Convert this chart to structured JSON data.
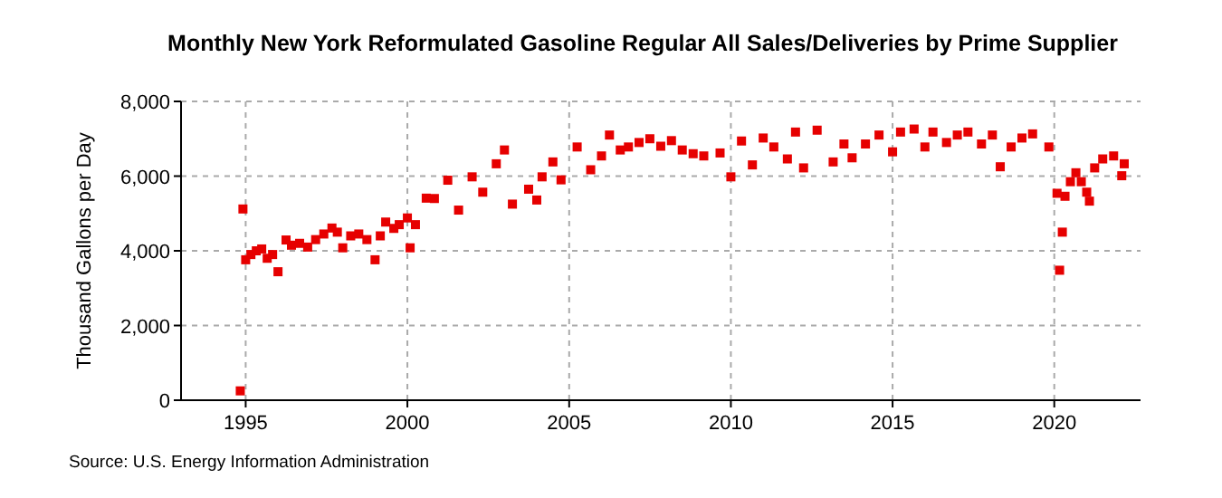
{
  "chart_data": {
    "type": "scatter",
    "title": "Monthly New York Reformulated Gasoline Regular All Sales/Deliveries by Prime Supplier",
    "ylabel": "Thousand Gallons per Day",
    "annotations": [
      "Source: U.S. Energy Information Administration"
    ],
    "x": [
      "1994-11",
      "1994-12",
      "1995-01",
      "1995-03",
      "1995-05",
      "1995-07",
      "1995-09",
      "1995-11",
      "1996-01",
      "1996-04",
      "1996-06",
      "1996-09",
      "1996-12",
      "1997-03",
      "1997-06",
      "1997-09",
      "1997-11",
      "1998-01",
      "1998-04",
      "1998-07",
      "1998-10",
      "1999-01",
      "1999-03",
      "1999-05",
      "1999-08",
      "1999-10",
      "2000-01",
      "2000-02",
      "2000-04",
      "2000-08",
      "2000-11",
      "2001-04",
      "2001-08",
      "2002-01",
      "2002-05",
      "2002-10",
      "2003-01",
      "2003-04",
      "2003-10",
      "2004-01",
      "2004-03",
      "2004-07",
      "2004-10",
      "2005-04",
      "2005-09",
      "2006-01",
      "2006-04",
      "2006-08",
      "2006-11",
      "2007-03",
      "2007-07",
      "2007-11",
      "2008-03",
      "2008-07",
      "2008-11",
      "2009-03",
      "2009-09",
      "2010-01",
      "2010-05",
      "2010-09",
      "2011-01",
      "2011-05",
      "2011-10",
      "2012-01",
      "2012-04",
      "2012-09",
      "2013-03",
      "2013-07",
      "2013-10",
      "2014-03",
      "2014-08",
      "2015-01",
      "2015-04",
      "2015-09",
      "2016-01",
      "2016-04",
      "2016-09",
      "2017-01",
      "2017-05",
      "2017-10",
      "2018-02",
      "2018-05",
      "2018-09",
      "2019-01",
      "2019-05",
      "2019-11",
      "2020-02",
      "2020-03",
      "2020-04",
      "2020-05",
      "2020-07",
      "2020-09",
      "2020-11",
      "2021-01",
      "2021-02",
      "2021-04",
      "2021-07",
      "2021-11",
      "2022-02",
      "2022-03"
    ],
    "values": [
      250,
      5120,
      3760,
      3900,
      4000,
      4050,
      3800,
      3900,
      3440,
      4290,
      4150,
      4200,
      4100,
      4300,
      4450,
      4610,
      4500,
      4080,
      4400,
      4450,
      4300,
      3760,
      4400,
      4770,
      4600,
      4700,
      4880,
      4080,
      4700,
      5410,
      5400,
      5890,
      5090,
      5980,
      5570,
      6330,
      6700,
      5250,
      5650,
      5360,
      5980,
      6380,
      5900,
      6780,
      6170,
      6540,
      7100,
      6700,
      6780,
      6900,
      7000,
      6800,
      6950,
      6700,
      6600,
      6540,
      6620,
      5980,
      6940,
      6300,
      7020,
      6780,
      6460,
      7180,
      6220,
      7230,
      6380,
      6860,
      6490,
      6860,
      7100,
      6650,
      7180,
      7260,
      6780,
      7180,
      6900,
      7100,
      7180,
      6860,
      7100,
      6250,
      6780,
      7020,
      7130,
      6780,
      5540,
      3480,
      4500,
      5460,
      5850,
      6090,
      5850,
      5570,
      5330,
      6220,
      6460,
      6540,
      6010,
      6330
    ],
    "color": "#e60000",
    "marker": "square",
    "xlim": [
      "1993-01",
      "2022-09"
    ],
    "xticks": [
      {
        "value": "1995-01",
        "label": "1995"
      },
      {
        "value": "2000-01",
        "label": "2000"
      },
      {
        "value": "2005-01",
        "label": "2005"
      },
      {
        "value": "2010-01",
        "label": "2010"
      },
      {
        "value": "2015-01",
        "label": "2015"
      },
      {
        "value": "2020-01",
        "label": "2020"
      }
    ],
    "ylim": [
      0,
      8000
    ],
    "yticks": [
      {
        "value": 0,
        "label": "0"
      },
      {
        "value": 2000,
        "label": "2,000"
      },
      {
        "value": 4000,
        "label": "4,000"
      },
      {
        "value": 6000,
        "label": "6,000"
      },
      {
        "value": 8000,
        "label": "8,000"
      }
    ],
    "grid": true
  }
}
